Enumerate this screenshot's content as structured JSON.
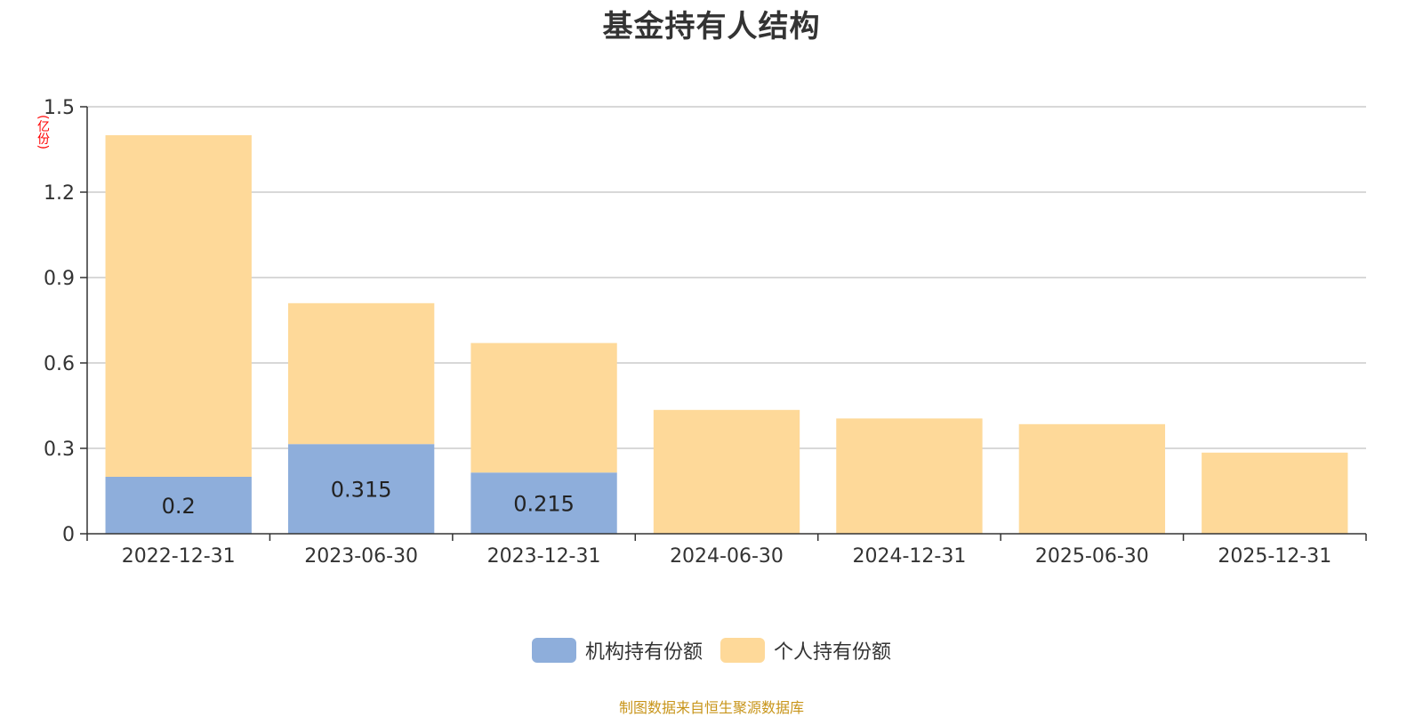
{
  "title": "基金持有人结构",
  "unit_label": "(亿份)",
  "source_text": "制图数据来自恒生聚源数据库",
  "chart_data": {
    "type": "bar",
    "stacked": true,
    "categories": [
      "2022-12-31",
      "2023-06-30",
      "2023-12-31",
      "2024-06-30",
      "2024-12-31",
      "2025-06-30",
      "2025-12-31"
    ],
    "series": [
      {
        "name": "机构持有份额",
        "color": "#8eaedb",
        "values": [
          0.2,
          0.315,
          0.215,
          0,
          0,
          0,
          0
        ],
        "labels": [
          "0.2",
          "0.315",
          "0.215",
          "",
          "",
          "",
          ""
        ]
      },
      {
        "name": "个人持有份额",
        "color": "#fed999",
        "values": [
          1.2,
          0.495,
          0.455,
          0.435,
          0.405,
          0.385,
          0.285
        ]
      }
    ],
    "ylim": [
      0,
      1.5
    ],
    "yticks": [
      0,
      0.3,
      0.6,
      0.9,
      1.2,
      1.5
    ],
    "ytick_labels": [
      "0",
      "0.3",
      "0.6",
      "0.9",
      "1.2",
      "1.5"
    ],
    "grid": true,
    "legend_position": "bottom"
  }
}
